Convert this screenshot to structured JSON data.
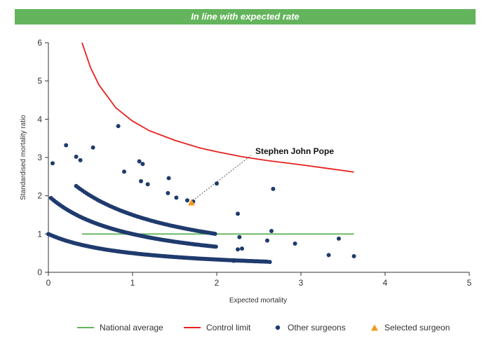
{
  "banner": {
    "text": "In line with expected rate",
    "color": "#63b45c"
  },
  "chart_data": {
    "type": "scatter",
    "xlabel": "Expected mortality",
    "ylabel": "Standardised mortality ratio",
    "xlim": [
      0,
      5
    ],
    "ylim": [
      0,
      6
    ],
    "x_ticks": [
      0,
      1,
      2,
      3,
      4,
      5
    ],
    "y_ticks": [
      0,
      1,
      2,
      3,
      4,
      5,
      6
    ],
    "grid": false,
    "legend_position": "bottom",
    "annotation": {
      "text": "Stephen John Pope",
      "target": [
        1.7,
        1.82
      ]
    },
    "series": [
      {
        "name": "National average",
        "kind": "line",
        "color": "#63b45c",
        "x": [
          0.4,
          3.63
        ],
        "y": [
          1,
          1
        ]
      },
      {
        "name": "Control limit",
        "kind": "line",
        "color": "#e8201e",
        "x": [
          0.4,
          0.5,
          0.6,
          0.8,
          1.0,
          1.2,
          1.5,
          1.8,
          2.0,
          2.3,
          2.6,
          3.0,
          3.3,
          3.63
        ],
        "y": [
          6.0,
          5.35,
          4.9,
          4.3,
          3.95,
          3.7,
          3.45,
          3.25,
          3.15,
          3.02,
          2.92,
          2.81,
          2.72,
          2.62
        ]
      },
      {
        "name": "Other surgeons",
        "kind": "scatter",
        "color": "#1f3b6e",
        "bands": [
          {
            "k": 1,
            "x_start": 0.0,
            "x_end": 2.6,
            "step": 0.02
          },
          {
            "k": 2,
            "x_start": 0.03,
            "x_end": 2.0,
            "step": 0.02
          },
          {
            "k": 3,
            "x_start": 0.33,
            "x_end": 2.0,
            "step": 0.025
          }
        ],
        "x": [
          0.05,
          0.21,
          0.33,
          0.38,
          0.53,
          0.83,
          0.9,
          1.08,
          1.12,
          1.1,
          1.18,
          1.42,
          1.43,
          1.52,
          1.65,
          1.72,
          2.0,
          2.25,
          2.27,
          2.25,
          2.6,
          2.65,
          2.67,
          2.93,
          3.33,
          3.45,
          3.63,
          2.63,
          2.2,
          2.3
        ],
        "y": [
          2.85,
          3.32,
          3.02,
          2.93,
          3.26,
          3.82,
          2.63,
          2.9,
          2.83,
          2.38,
          2.3,
          2.07,
          2.46,
          1.95,
          1.88,
          1.85,
          2.32,
          1.53,
          0.92,
          0.6,
          0.83,
          1.08,
          2.18,
          0.75,
          0.45,
          0.88,
          0.42,
          0.27,
          0.3,
          0.62
        ]
      },
      {
        "name": "Selected surgeon",
        "kind": "scatter",
        "marker": "triangle",
        "color": "#f39a1e",
        "x": [
          1.7
        ],
        "y": [
          1.82
        ]
      }
    ]
  }
}
